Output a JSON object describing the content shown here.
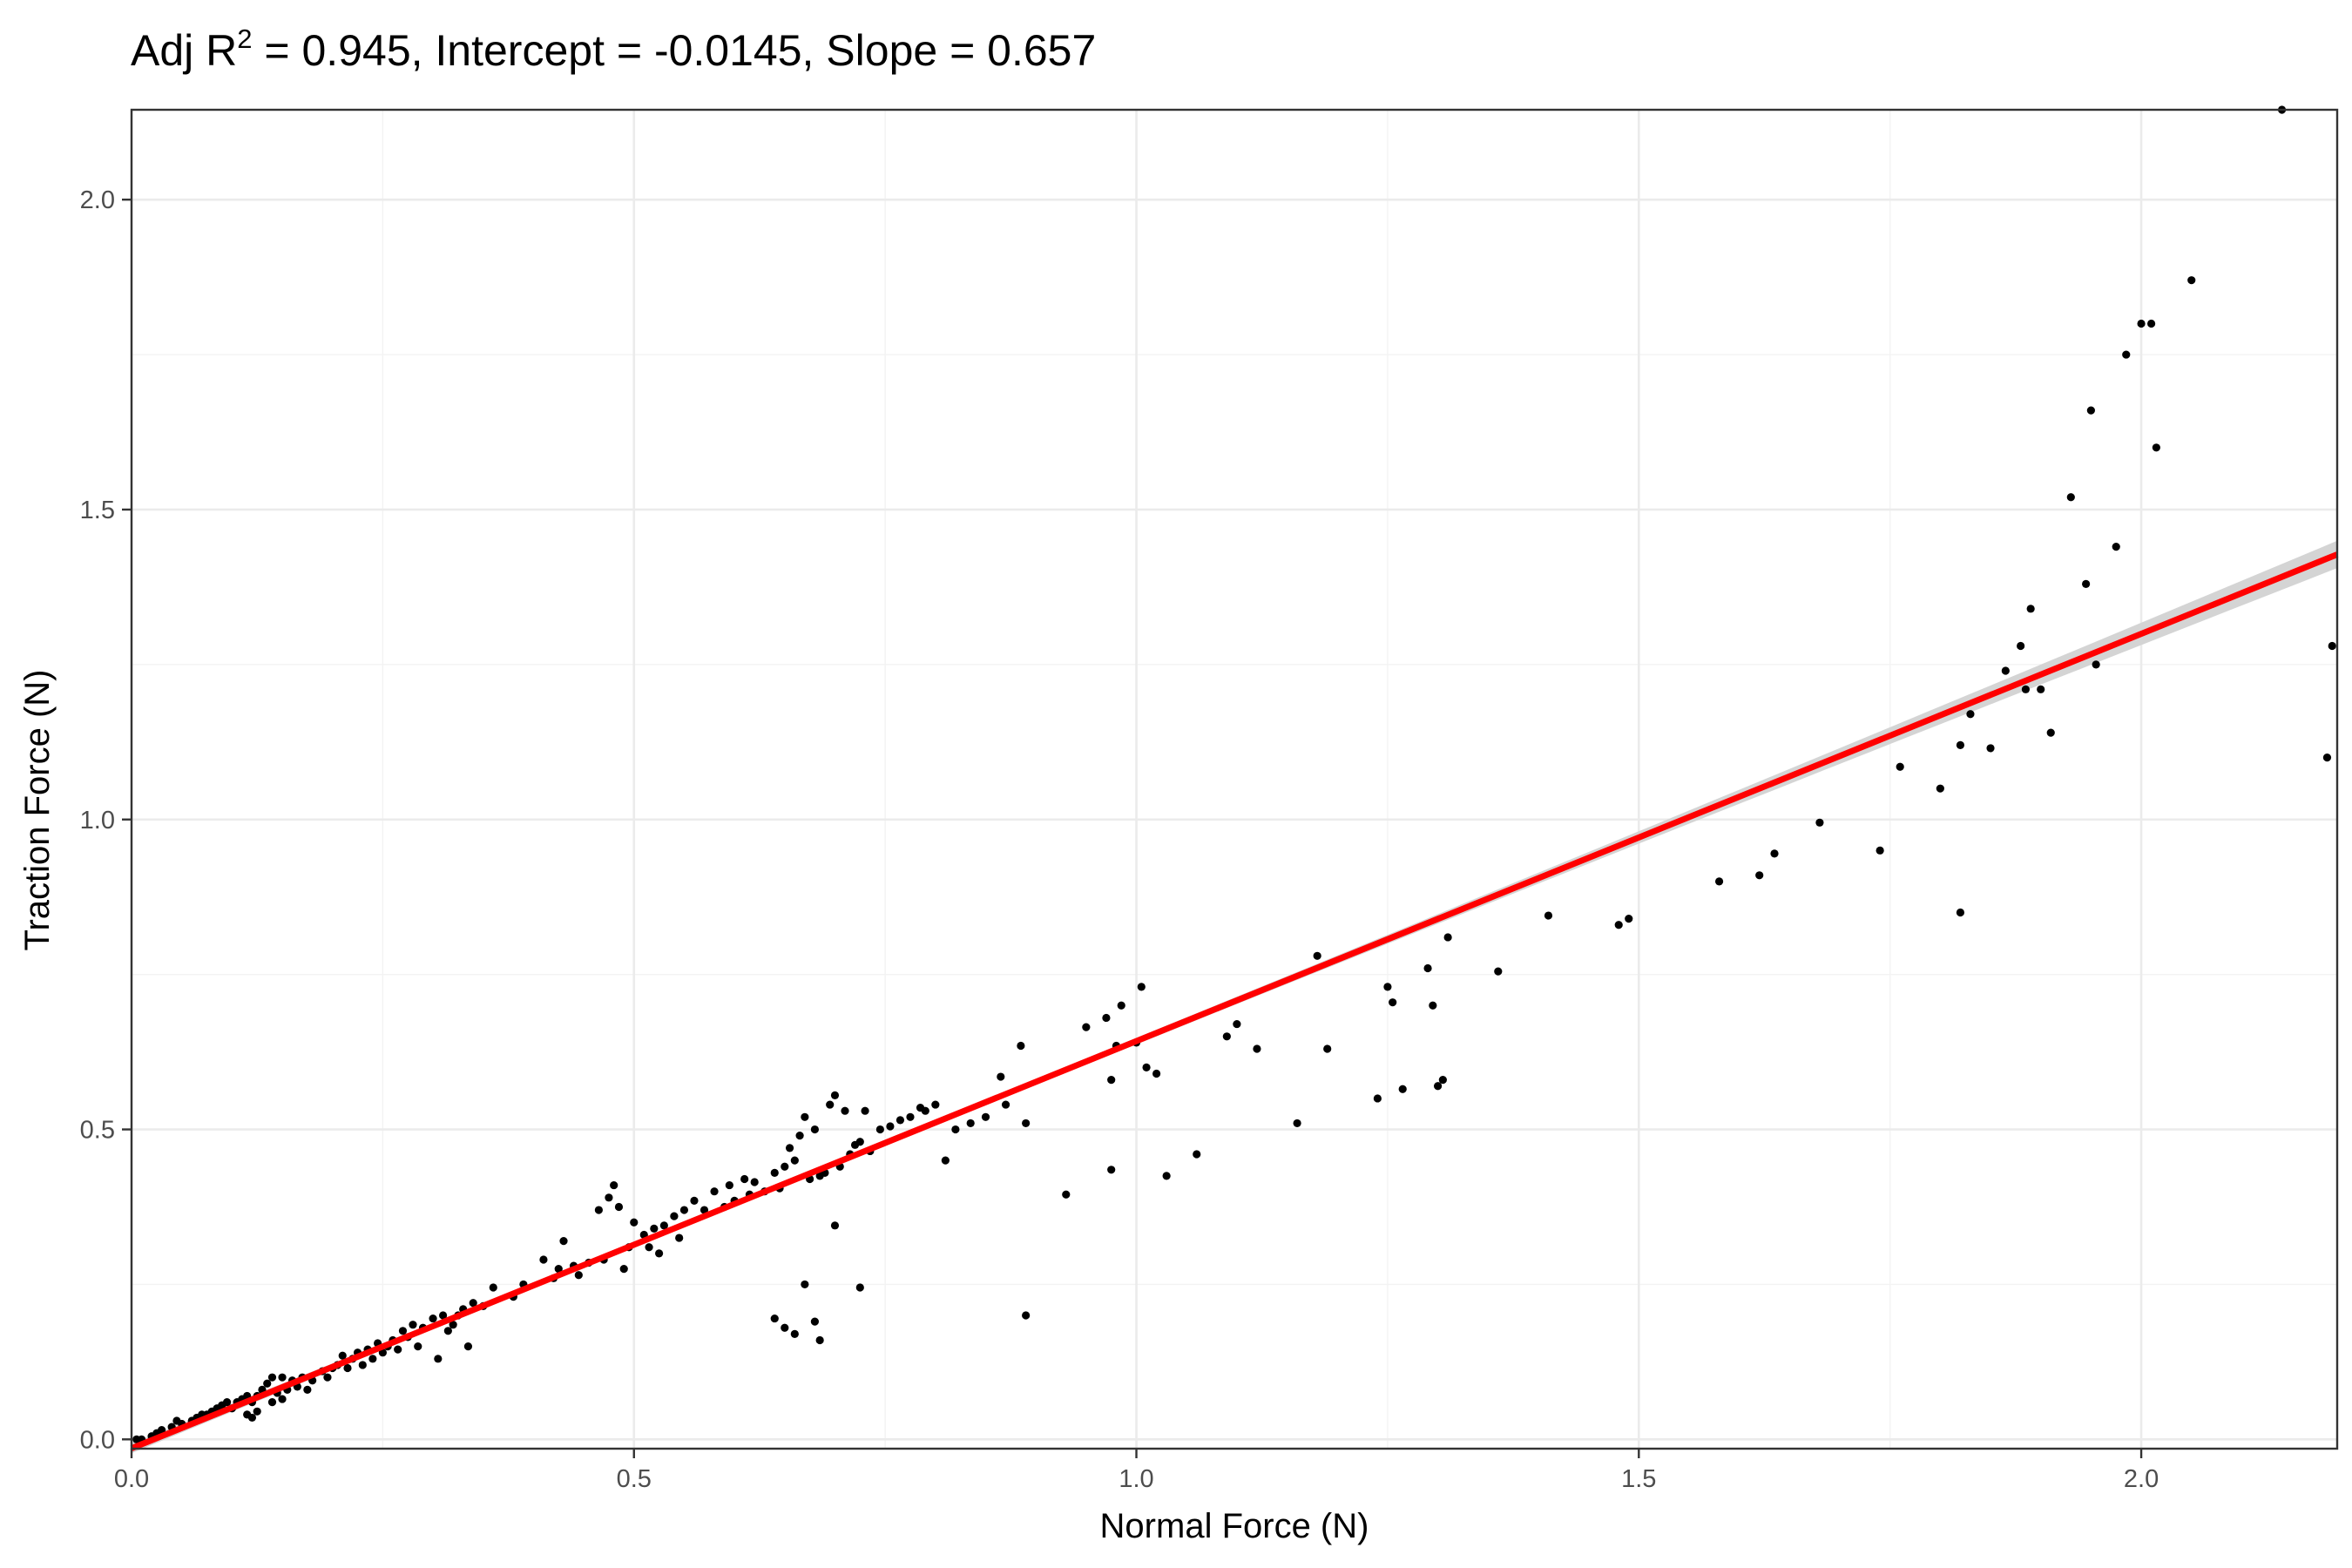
{
  "chart_data": {
    "type": "scatter",
    "title": {
      "prefix": "Adj R",
      "superscript": "2",
      "suffix": " = 0.945, Intercept = -0.0145, Slope = 0.657"
    },
    "xlabel": "Normal Force (N)",
    "ylabel": "Traction Force (N)",
    "xlim": [
      0,
      2.195
    ],
    "ylim": [
      -0.015,
      2.145
    ],
    "x_ticks": [
      {
        "value": 0.0,
        "label": "0.0"
      },
      {
        "value": 0.5,
        "label": "0.5"
      },
      {
        "value": 1.0,
        "label": "1.0"
      },
      {
        "value": 1.5,
        "label": "1.5"
      },
      {
        "value": 2.0,
        "label": "2.0"
      }
    ],
    "y_ticks": [
      {
        "value": 0.0,
        "label": "0.0"
      },
      {
        "value": 0.5,
        "label": "0.5"
      },
      {
        "value": 1.0,
        "label": "1.0"
      },
      {
        "value": 1.5,
        "label": "1.5"
      },
      {
        "value": 2.0,
        "label": "2.0"
      }
    ],
    "x_minor": [
      0.25,
      0.75,
      1.25,
      1.75
    ],
    "y_minor": [
      0.25,
      0.75,
      1.25,
      1.75
    ],
    "grid": true,
    "fit_line": {
      "intercept": -0.0145,
      "slope": 0.657,
      "color": "#ff0000",
      "confidence_band": {
        "color": "#d4d4d4",
        "half_width_at_min_x": 0.008,
        "half_width_at_max_x": 0.022,
        "center_x": 0.55,
        "half_width_at_center": 0.004
      }
    },
    "point_color": "#000000",
    "points": [
      [
        0.005,
        0.0
      ],
      [
        0.01,
        0.0
      ],
      [
        0.02,
        0.005
      ],
      [
        0.025,
        0.01
      ],
      [
        0.03,
        0.015
      ],
      [
        0.04,
        0.02
      ],
      [
        0.045,
        0.03
      ],
      [
        0.05,
        0.025
      ],
      [
        0.06,
        0.03
      ],
      [
        0.065,
        0.035
      ],
      [
        0.07,
        0.04
      ],
      [
        0.075,
        0.04
      ],
      [
        0.08,
        0.045
      ],
      [
        0.085,
        0.05
      ],
      [
        0.09,
        0.055
      ],
      [
        0.095,
        0.06
      ],
      [
        0.1,
        0.05
      ],
      [
        0.105,
        0.06
      ],
      [
        0.11,
        0.065
      ],
      [
        0.115,
        0.04
      ],
      [
        0.115,
        0.07
      ],
      [
        0.12,
        0.035
      ],
      [
        0.12,
        0.06
      ],
      [
        0.125,
        0.045
      ],
      [
        0.125,
        0.07
      ],
      [
        0.13,
        0.08
      ],
      [
        0.135,
        0.09
      ],
      [
        0.14,
        0.06
      ],
      [
        0.14,
        0.1
      ],
      [
        0.145,
        0.075
      ],
      [
        0.15,
        0.065
      ],
      [
        0.15,
        0.1
      ],
      [
        0.155,
        0.08
      ],
      [
        0.16,
        0.095
      ],
      [
        0.165,
        0.085
      ],
      [
        0.17,
        0.1
      ],
      [
        0.175,
        0.08
      ],
      [
        0.18,
        0.095
      ],
      [
        0.19,
        0.11
      ],
      [
        0.195,
        0.1
      ],
      [
        0.2,
        0.115
      ],
      [
        0.205,
        0.12
      ],
      [
        0.21,
        0.135
      ],
      [
        0.215,
        0.115
      ],
      [
        0.22,
        0.13
      ],
      [
        0.225,
        0.14
      ],
      [
        0.23,
        0.12
      ],
      [
        0.235,
        0.145
      ],
      [
        0.24,
        0.13
      ],
      [
        0.245,
        0.155
      ],
      [
        0.25,
        0.14
      ],
      [
        0.255,
        0.15
      ],
      [
        0.26,
        0.16
      ],
      [
        0.265,
        0.145
      ],
      [
        0.27,
        0.175
      ],
      [
        0.275,
        0.165
      ],
      [
        0.28,
        0.185
      ],
      [
        0.285,
        0.15
      ],
      [
        0.29,
        0.18
      ],
      [
        0.3,
        0.195
      ],
      [
        0.305,
        0.13
      ],
      [
        0.31,
        0.2
      ],
      [
        0.315,
        0.175
      ],
      [
        0.32,
        0.185
      ],
      [
        0.325,
        0.2
      ],
      [
        0.33,
        0.21
      ],
      [
        0.335,
        0.15
      ],
      [
        0.34,
        0.22
      ],
      [
        0.35,
        0.215
      ],
      [
        0.36,
        0.245
      ],
      [
        0.38,
        0.23
      ],
      [
        0.39,
        0.25
      ],
      [
        0.41,
        0.29
      ],
      [
        0.42,
        0.26
      ],
      [
        0.425,
        0.275
      ],
      [
        0.43,
        0.32
      ],
      [
        0.44,
        0.28
      ],
      [
        0.445,
        0.265
      ],
      [
        0.455,
        0.285
      ],
      [
        0.465,
        0.37
      ],
      [
        0.47,
        0.29
      ],
      [
        0.475,
        0.39
      ],
      [
        0.48,
        0.41
      ],
      [
        0.485,
        0.375
      ],
      [
        0.49,
        0.275
      ],
      [
        0.495,
        0.31
      ],
      [
        0.5,
        0.35
      ],
      [
        0.51,
        0.33
      ],
      [
        0.515,
        0.31
      ],
      [
        0.52,
        0.34
      ],
      [
        0.525,
        0.3
      ],
      [
        0.53,
        0.345
      ],
      [
        0.54,
        0.36
      ],
      [
        0.545,
        0.325
      ],
      [
        0.55,
        0.37
      ],
      [
        0.56,
        0.385
      ],
      [
        0.57,
        0.37
      ],
      [
        0.58,
        0.4
      ],
      [
        0.59,
        0.375
      ],
      [
        0.595,
        0.41
      ],
      [
        0.6,
        0.385
      ],
      [
        0.61,
        0.42
      ],
      [
        0.615,
        0.395
      ],
      [
        0.62,
        0.415
      ],
      [
        0.63,
        0.4
      ],
      [
        0.64,
        0.43
      ],
      [
        0.645,
        0.405
      ],
      [
        0.65,
        0.44
      ],
      [
        0.655,
        0.47
      ],
      [
        0.66,
        0.45
      ],
      [
        0.665,
        0.49
      ],
      [
        0.67,
        0.52
      ],
      [
        0.675,
        0.42
      ],
      [
        0.68,
        0.5
      ],
      [
        0.685,
        0.425
      ],
      [
        0.69,
        0.43
      ],
      [
        0.695,
        0.54
      ],
      [
        0.7,
        0.555
      ],
      [
        0.705,
        0.44
      ],
      [
        0.71,
        0.53
      ],
      [
        0.715,
        0.46
      ],
      [
        0.72,
        0.475
      ],
      [
        0.725,
        0.48
      ],
      [
        0.73,
        0.53
      ],
      [
        0.735,
        0.465
      ],
      [
        0.745,
        0.5
      ],
      [
        0.755,
        0.505
      ],
      [
        0.765,
        0.515
      ],
      [
        0.775,
        0.52
      ],
      [
        0.785,
        0.535
      ],
      [
        0.79,
        0.53
      ],
      [
        0.8,
        0.54
      ],
      [
        0.81,
        0.45
      ],
      [
        0.82,
        0.5
      ],
      [
        0.835,
        0.51
      ],
      [
        0.85,
        0.52
      ],
      [
        0.865,
        0.585
      ],
      [
        0.87,
        0.54
      ],
      [
        0.885,
        0.635
      ],
      [
        0.89,
        0.51
      ],
      [
        0.64,
        0.195
      ],
      [
        0.65,
        0.18
      ],
      [
        0.66,
        0.17
      ],
      [
        0.67,
        0.25
      ],
      [
        0.68,
        0.19
      ],
      [
        0.685,
        0.16
      ],
      [
        0.7,
        0.345
      ],
      [
        0.725,
        0.245
      ],
      [
        0.89,
        0.2
      ],
      [
        0.93,
        0.395
      ],
      [
        0.95,
        0.665
      ],
      [
        0.97,
        0.68
      ],
      [
        0.975,
        0.58
      ],
      [
        0.975,
        0.435
      ],
      [
        0.98,
        0.635
      ],
      [
        0.985,
        0.7
      ],
      [
        1.0,
        0.64
      ],
      [
        1.005,
        0.73
      ],
      [
        1.01,
        0.6
      ],
      [
        1.02,
        0.59
      ],
      [
        1.03,
        0.425
      ],
      [
        1.06,
        0.46
      ],
      [
        1.09,
        0.65
      ],
      [
        1.1,
        0.67
      ],
      [
        1.12,
        0.63
      ],
      [
        1.16,
        0.51
      ],
      [
        1.18,
        0.78
      ],
      [
        1.19,
        0.63
      ],
      [
        1.24,
        0.55
      ],
      [
        1.25,
        0.73
      ],
      [
        1.255,
        0.705
      ],
      [
        1.265,
        0.565
      ],
      [
        1.29,
        0.76
      ],
      [
        1.295,
        0.7
      ],
      [
        1.3,
        0.57
      ],
      [
        1.305,
        0.58
      ],
      [
        1.31,
        0.81
      ],
      [
        1.36,
        0.755
      ],
      [
        1.41,
        0.845
      ],
      [
        1.48,
        0.83
      ],
      [
        1.49,
        0.84
      ],
      [
        1.58,
        0.9
      ],
      [
        1.62,
        0.91
      ],
      [
        1.635,
        0.945
      ],
      [
        1.68,
        0.995
      ],
      [
        1.74,
        0.95
      ],
      [
        1.76,
        1.085
      ],
      [
        1.8,
        1.05
      ],
      [
        1.82,
        1.12
      ],
      [
        1.82,
        0.85
      ],
      [
        1.83,
        1.17
      ],
      [
        1.85,
        1.115
      ],
      [
        1.865,
        1.24
      ],
      [
        1.88,
        1.28
      ],
      [
        1.885,
        1.21
      ],
      [
        1.89,
        1.34
      ],
      [
        1.9,
        1.21
      ],
      [
        1.91,
        1.14
      ],
      [
        1.93,
        1.52
      ],
      [
        1.95,
        1.66
      ],
      [
        1.945,
        1.38
      ],
      [
        1.955,
        1.25
      ],
      [
        1.975,
        1.44
      ],
      [
        1.985,
        1.75
      ],
      [
        2.0,
        1.8
      ],
      [
        2.01,
        1.8
      ],
      [
        2.015,
        1.6
      ],
      [
        2.05,
        1.87
      ],
      [
        2.14,
        2.145
      ],
      [
        2.185,
        1.1
      ],
      [
        2.19,
        1.28
      ]
    ]
  }
}
